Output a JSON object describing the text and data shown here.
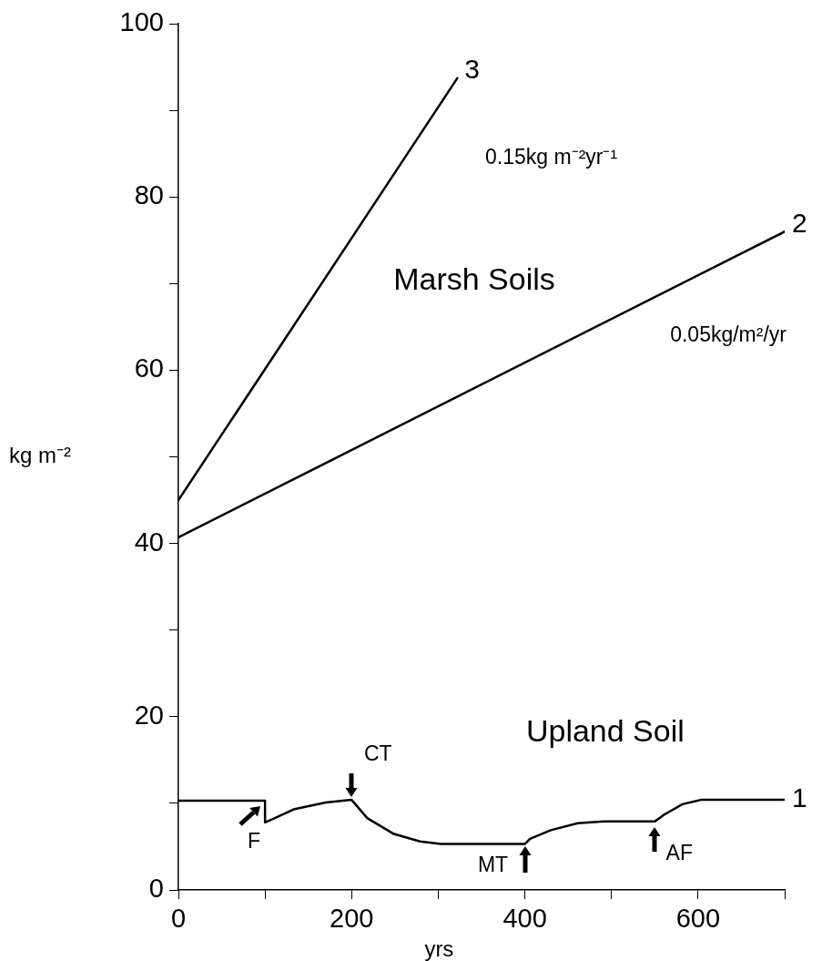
{
  "chart_data": {
    "type": "line",
    "xlabel": "yrs",
    "ylabel": "kg m⁻²",
    "xlim": [
      0,
      700
    ],
    "ylim": [
      0,
      100
    ],
    "xticks": [
      0,
      {
        "value": 100,
        "label": null
      },
      200,
      {
        "value": 300,
        "label": null
      },
      400,
      {
        "value": 500,
        "label": null
      },
      600,
      {
        "value": 700,
        "label": null
      }
    ],
    "yticks": [
      0,
      {
        "value": 10,
        "label": null
      },
      20,
      {
        "value": 30,
        "label": null
      },
      40,
      {
        "value": 50,
        "label": null
      },
      60,
      {
        "value": 70,
        "label": null
      },
      80,
      {
        "value": 90,
        "label": null
      },
      100
    ],
    "grid": false,
    "marker": "none",
    "line_style": "solid",
    "series": [
      {
        "name": "1",
        "color": "#000000",
        "x": [
          0,
          100,
          100,
          109,
          133,
          170,
          200,
          218,
          248,
          279,
          303,
          400,
          406,
          430,
          461,
          491,
          550,
          561,
          582,
          603,
          700
        ],
        "values": [
          10.3,
          10.3,
          7.8,
          8.2,
          9.3,
          10.1,
          10.4,
          8.3,
          6.5,
          5.6,
          5.3,
          5.3,
          5.9,
          6.9,
          7.7,
          7.9,
          7.9,
          8.7,
          9.9,
          10.4,
          10.4
        ]
      },
      {
        "name": "2",
        "color": "#000000",
        "x": [
          0,
          700
        ],
        "values": [
          40.7,
          76
        ]
      },
      {
        "name": "3",
        "color": "#000000",
        "x": [
          0,
          322
        ],
        "values": [
          45,
          93.7
        ]
      }
    ],
    "annotations": [
      "0.15kg m⁻²yr⁻¹",
      "Marsh Soils",
      "0.05kg/m²/yr",
      "Upland Soil",
      {
        "text": "F",
        "x": 100,
        "y": 9
      },
      {
        "text": "CT",
        "x": 200,
        "y": 10.4
      },
      {
        "text": "MT",
        "x": 400,
        "y": 5.3
      },
      {
        "text": "AF",
        "x": 550,
        "y": 7.9
      }
    ]
  }
}
